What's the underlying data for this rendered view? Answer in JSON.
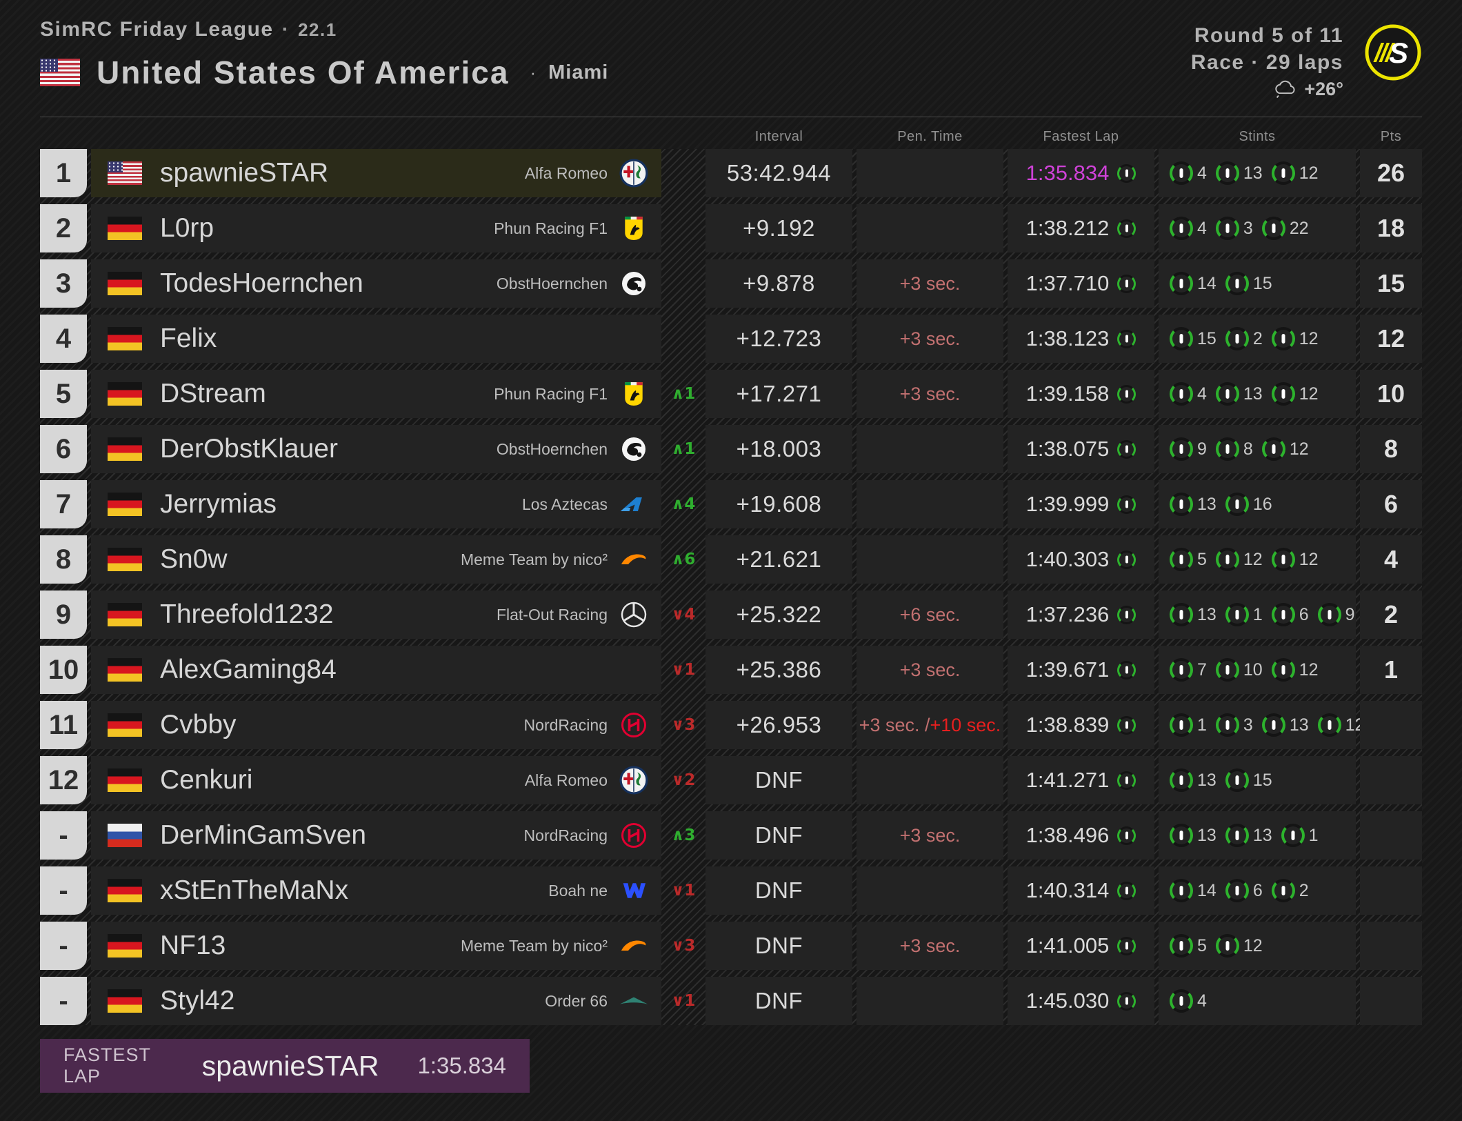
{
  "header": {
    "league": "SimRC Friday League",
    "sep": "·",
    "edition": "22.1",
    "country": "United States Of America",
    "city": "Miami",
    "round": "Round 5 of 11",
    "session": "Race · 29 laps",
    "temperature": "+26°",
    "logo_letter": "S"
  },
  "columns": {
    "interval": "Interval",
    "pen": "Pen. Time",
    "fastest_lap": "Fastest Lap",
    "stints": "Stints",
    "pts": "Pts"
  },
  "colors": {
    "fastest_lap_purple": "#cf42d8",
    "tire_green": "#2db32d",
    "gain_green": "#2fae2f",
    "loss_red": "#bb2a2a",
    "penalty_muted": "#c27070",
    "penalty_strong": "#e81f1f",
    "banner_purple": "#4c294d",
    "logo_yellow": "#ece400",
    "highlight_olive": "#2b2b19"
  },
  "rows": [
    {
      "pos": "1",
      "flag": "us",
      "driver": "spawnieSTAR",
      "team": "Alfa Romeo",
      "team_logo": "alfa-romeo",
      "change": null,
      "interval": "53:42.944",
      "pen": [],
      "fastest_lap": "1:35.834",
      "fastest_lap_highlight": true,
      "stints": [
        4,
        13,
        12
      ],
      "pts": "26",
      "row_highlight": true
    },
    {
      "pos": "2",
      "flag": "de",
      "driver": "L0rp",
      "team": "Phun Racing F1",
      "team_logo": "ferrari",
      "change": null,
      "interval": "+9.192",
      "pen": [],
      "fastest_lap": "1:38.212",
      "stints": [
        4,
        3,
        22
      ],
      "pts": "18"
    },
    {
      "pos": "3",
      "flag": "de",
      "driver": "TodesHoernchen",
      "team": "ObstHoernchen",
      "team_logo": "obsthoernchen",
      "change": null,
      "interval": "+9.878",
      "pen": [
        {
          "text": "+3 sec.",
          "strong": false
        }
      ],
      "fastest_lap": "1:37.710",
      "stints": [
        14,
        15
      ],
      "pts": "15"
    },
    {
      "pos": "4",
      "flag": "de",
      "driver": "Felix",
      "team": "",
      "team_logo": null,
      "change": null,
      "interval": "+12.723",
      "pen": [
        {
          "text": "+3 sec.",
          "strong": false
        }
      ],
      "fastest_lap": "1:38.123",
      "stints": [
        15,
        2,
        12
      ],
      "pts": "12"
    },
    {
      "pos": "5",
      "flag": "de",
      "driver": "DStream",
      "team": "Phun Racing F1",
      "team_logo": "ferrari",
      "change": {
        "dir": "up",
        "value": 1
      },
      "interval": "+17.271",
      "pen": [
        {
          "text": "+3 sec.",
          "strong": false
        }
      ],
      "fastest_lap": "1:39.158",
      "stints": [
        4,
        13,
        12
      ],
      "pts": "10"
    },
    {
      "pos": "6",
      "flag": "de",
      "driver": "DerObstKlauer",
      "team": "ObstHoernchen",
      "team_logo": "obsthoernchen",
      "change": {
        "dir": "up",
        "value": 1
      },
      "interval": "+18.003",
      "pen": [],
      "fastest_lap": "1:38.075",
      "stints": [
        9,
        8,
        12
      ],
      "pts": "8"
    },
    {
      "pos": "7",
      "flag": "de",
      "driver": "Jerrymias",
      "team": "Los Aztecas",
      "team_logo": "alpine",
      "change": {
        "dir": "up",
        "value": 4
      },
      "interval": "+19.608",
      "pen": [],
      "fastest_lap": "1:39.999",
      "stints": [
        13,
        16
      ],
      "pts": "6"
    },
    {
      "pos": "8",
      "flag": "de",
      "driver": "Sn0w",
      "team": "Meme Team by nico²",
      "team_logo": "mclaren",
      "change": {
        "dir": "up",
        "value": 6
      },
      "interval": "+21.621",
      "pen": [],
      "fastest_lap": "1:40.303",
      "stints": [
        5,
        12,
        12
      ],
      "pts": "4"
    },
    {
      "pos": "9",
      "flag": "de",
      "driver": "Threefold1232",
      "team": "Flat-Out Racing",
      "team_logo": "mercedes",
      "change": {
        "dir": "down",
        "value": 4
      },
      "interval": "+25.322",
      "pen": [
        {
          "text": "+6 sec.",
          "strong": false
        }
      ],
      "fastest_lap": "1:37.236",
      "stints": [
        13,
        1,
        6,
        9
      ],
      "pts": "2"
    },
    {
      "pos": "10",
      "flag": "de",
      "driver": "AlexGaming84",
      "team": "",
      "team_logo": null,
      "change": {
        "dir": "down",
        "value": 1
      },
      "interval": "+25.386",
      "pen": [
        {
          "text": "+3 sec.",
          "strong": false
        }
      ],
      "fastest_lap": "1:39.671",
      "stints": [
        7,
        10,
        12
      ],
      "pts": "1"
    },
    {
      "pos": "11",
      "flag": "de",
      "driver": "Cvbby",
      "team": "NordRacing",
      "team_logo": "haas",
      "change": {
        "dir": "down",
        "value": 3
      },
      "interval": "+26.953",
      "pen": [
        {
          "text": "+3 sec. / ",
          "strong": false
        },
        {
          "text": "+10 sec.",
          "strong": true
        }
      ],
      "fastest_lap": "1:38.839",
      "stints": [
        1,
        3,
        13,
        12
      ],
      "pts": ""
    },
    {
      "pos": "12",
      "flag": "de",
      "driver": "Cenkuri",
      "team": "Alfa Romeo",
      "team_logo": "alfa-romeo",
      "change": {
        "dir": "down",
        "value": 2
      },
      "interval": "DNF",
      "pen": [],
      "fastest_lap": "1:41.271",
      "stints": [
        13,
        15
      ],
      "pts": ""
    },
    {
      "pos": "-",
      "flag": "ru",
      "driver": "DerMinGamSven",
      "team": "NordRacing",
      "team_logo": "haas",
      "change": {
        "dir": "up",
        "value": 3
      },
      "interval": "DNF",
      "pen": [
        {
          "text": "+3 sec.",
          "strong": false
        }
      ],
      "fastest_lap": "1:38.496",
      "stints": [
        13,
        13,
        1
      ],
      "pts": ""
    },
    {
      "pos": "-",
      "flag": "de",
      "driver": "xStEnTheMaNx",
      "team": "Boah ne",
      "team_logo": "williams",
      "change": {
        "dir": "down",
        "value": 1
      },
      "interval": "DNF",
      "pen": [],
      "fastest_lap": "1:40.314",
      "stints": [
        14,
        6,
        2
      ],
      "pts": ""
    },
    {
      "pos": "-",
      "flag": "de",
      "driver": "NF13",
      "team": "Meme Team by nico²",
      "team_logo": "mclaren",
      "change": {
        "dir": "down",
        "value": 3
      },
      "interval": "DNF",
      "pen": [
        {
          "text": "+3 sec.",
          "strong": false
        }
      ],
      "fastest_lap": "1:41.005",
      "stints": [
        5,
        12
      ],
      "pts": ""
    },
    {
      "pos": "-",
      "flag": "de",
      "driver": "Styl42",
      "team": "Order 66",
      "team_logo": "aston-martin",
      "change": {
        "dir": "down",
        "value": 1
      },
      "interval": "DNF",
      "pen": [],
      "fastest_lap": "1:45.030",
      "stints": [
        4
      ],
      "pts": ""
    }
  ],
  "footer": {
    "label": "FASTEST LAP",
    "driver": "spawnieSTAR",
    "time": "1:35.834"
  }
}
